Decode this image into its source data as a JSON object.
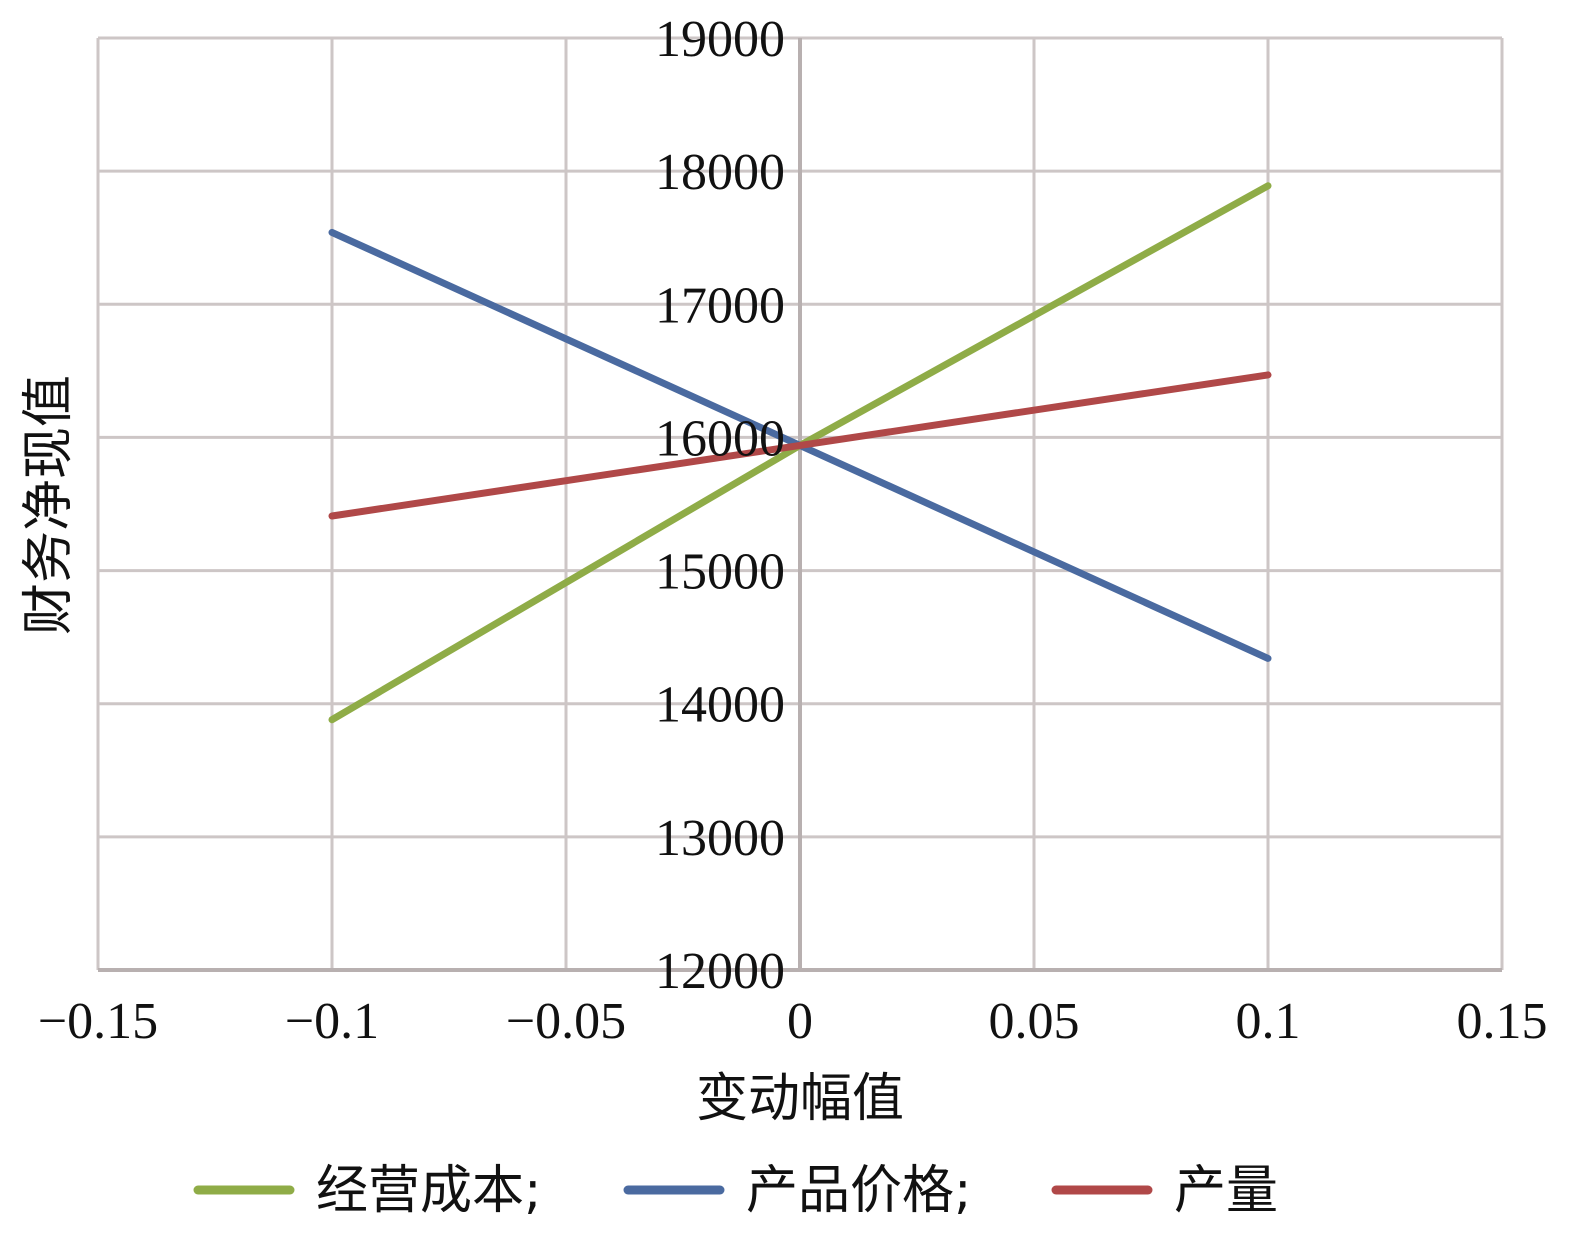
{
  "chart_data": {
    "type": "line",
    "title": "",
    "xlabel": "变动幅值",
    "ylabel": "财务净现值",
    "xlim": [
      -0.15,
      0.15
    ],
    "ylim": [
      12000,
      19000
    ],
    "x_ticks": [
      "−0.15",
      "−0.1",
      "−0.05",
      "0",
      "0.05",
      "0.1",
      "0.15"
    ],
    "x_tick_values": [
      -0.15,
      -0.1,
      -0.05,
      0,
      0.05,
      0.1,
      0.15
    ],
    "y_ticks": [
      "12000",
      "13000",
      "14000",
      "15000",
      "16000",
      "17000",
      "18000",
      "19000"
    ],
    "y_tick_values": [
      12000,
      13000,
      14000,
      15000,
      16000,
      17000,
      18000,
      19000
    ],
    "grid": true,
    "legend_position": "bottom",
    "series": [
      {
        "name": "经营成本;",
        "color": "#8fac47",
        "x": [
          -0.1,
          0,
          0.1
        ],
        "y": [
          13880,
          15940,
          17890
        ]
      },
      {
        "name": "产品价格;",
        "color": "#4a6aa0",
        "x": [
          -0.1,
          0,
          0.1
        ],
        "y": [
          17540,
          15940,
          14340
        ]
      },
      {
        "name": "产量",
        "color": "#b04848",
        "x": [
          -0.1,
          0,
          0.1
        ],
        "y": [
          15410,
          15940,
          16470
        ]
      }
    ]
  }
}
